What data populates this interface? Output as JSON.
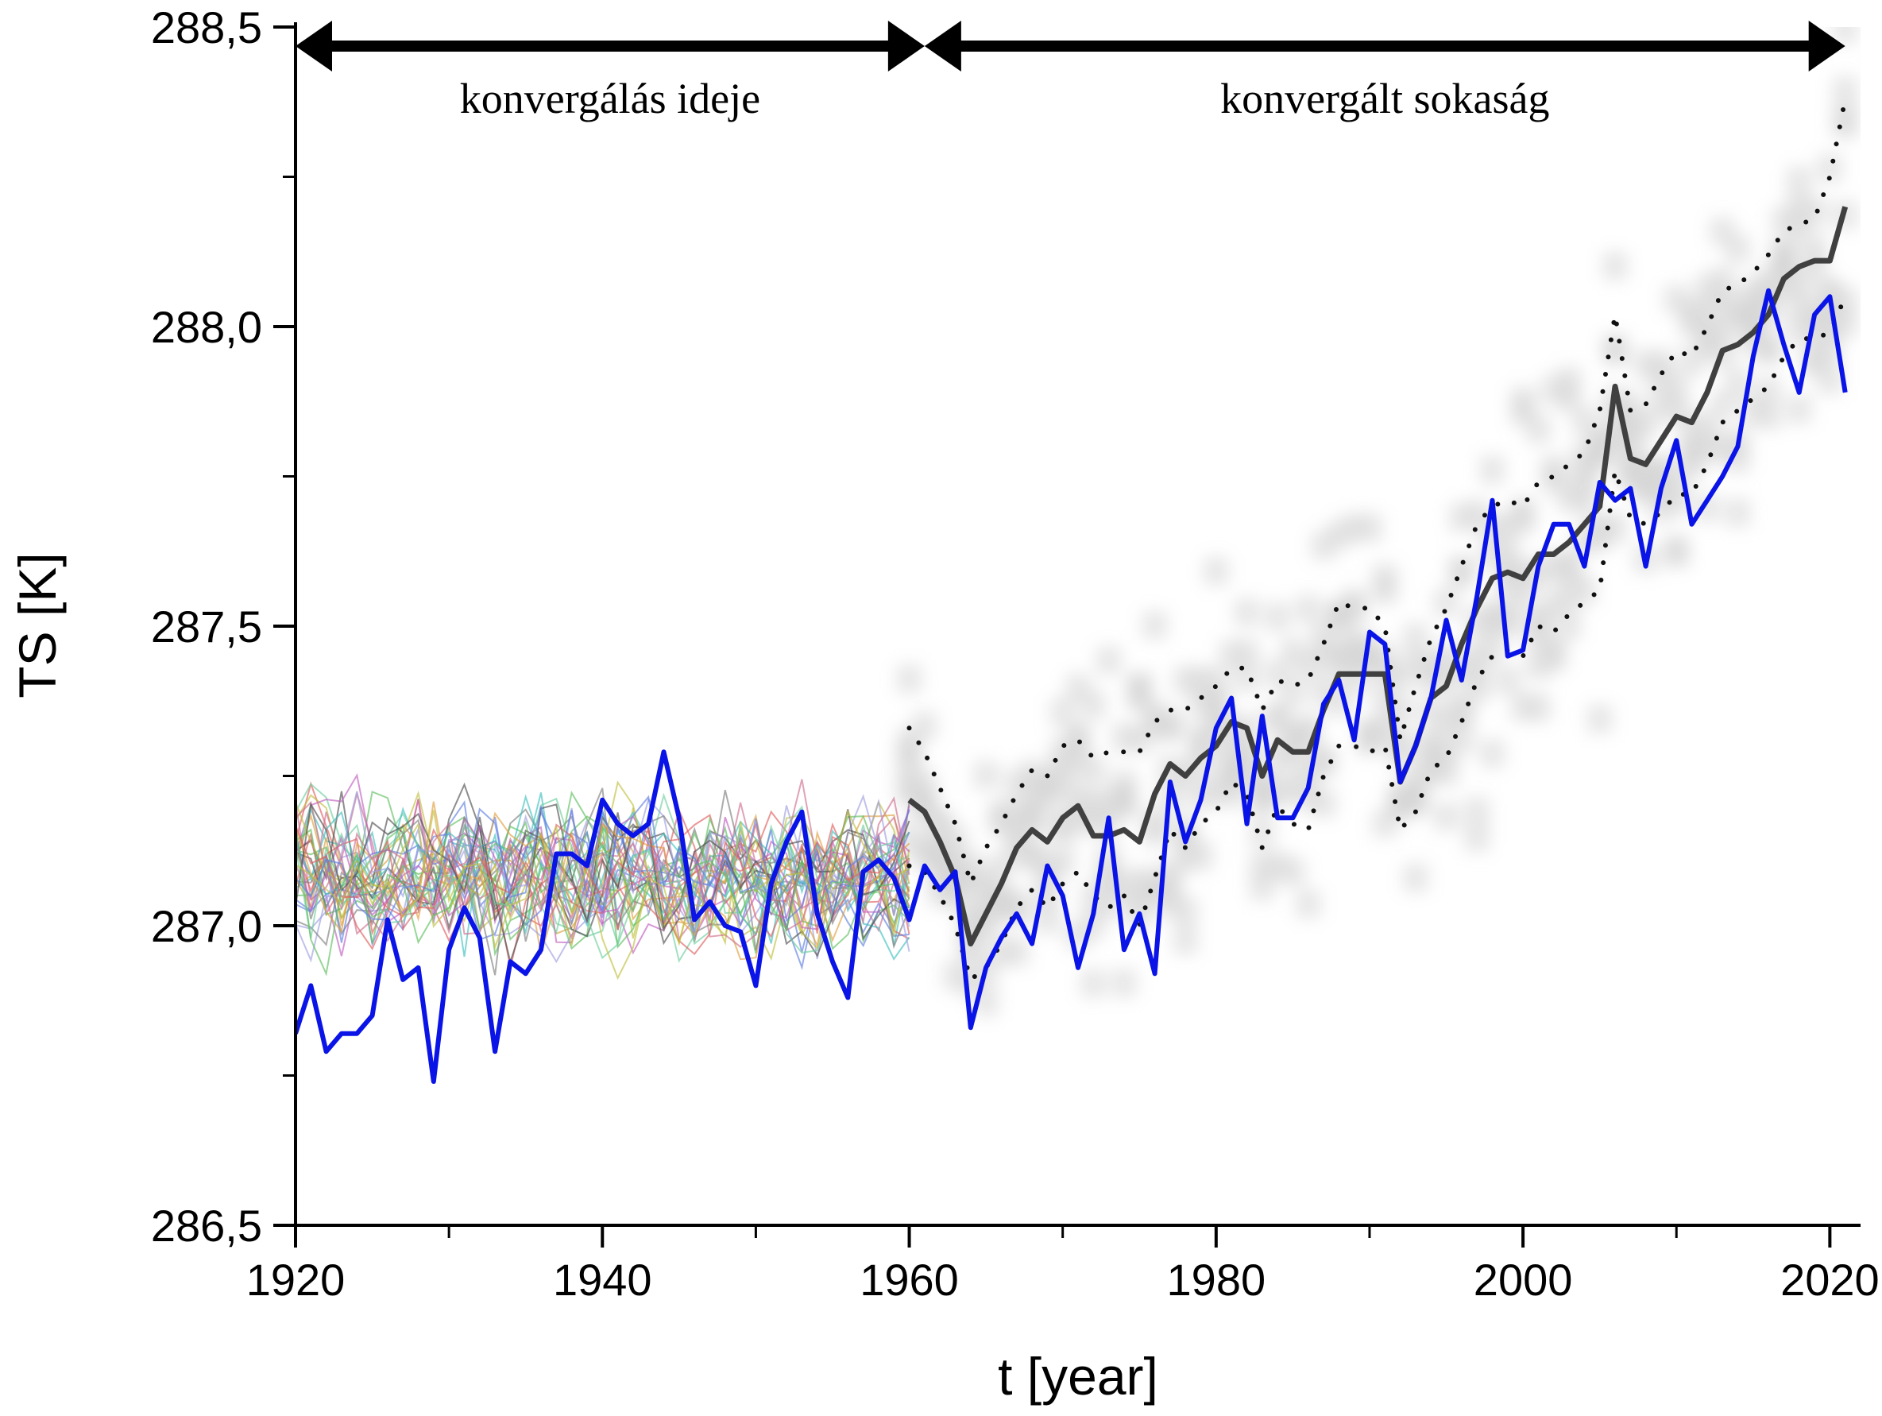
{
  "chart_data": {
    "type": "line",
    "xlabel": "t [year]",
    "ylabel": "TS [K]",
    "xlim": [
      1920,
      2022
    ],
    "ylim": [
      286.5,
      288.5
    ],
    "x_ticks": [
      1920,
      1940,
      1960,
      1980,
      2000,
      2020
    ],
    "y_ticks": [
      286.5,
      287.0,
      287.5,
      288.0,
      288.5
    ],
    "x_tick_labels": [
      "1920",
      "1940",
      "1960",
      "1980",
      "2000",
      "2020"
    ],
    "y_tick_labels": [
      "286,5",
      "287,0",
      "287,5",
      "288,0",
      "288,5"
    ],
    "annotations": [
      {
        "text": "konvergálás ideje",
        "x_start": 1920,
        "x_end": 1961
      },
      {
        "text": "konvergált sokaság",
        "x_start": 1961,
        "x_end": 2021
      }
    ],
    "colors": {
      "observed": "#0a14e6",
      "ensemble_mean": "#404040",
      "ensemble_bounds": "#111111",
      "ensemble_cloud": "#cfcfcf",
      "arrow": "#000000"
    },
    "series": [
      {
        "role": "observed",
        "x": [
          1920,
          1921,
          1922,
          1923,
          1924,
          1925,
          1926,
          1927,
          1928,
          1929,
          1930,
          1931,
          1932,
          1933,
          1934,
          1935,
          1936,
          1937,
          1938,
          1939,
          1940,
          1941,
          1942,
          1943,
          1944,
          1945,
          1946,
          1947,
          1948,
          1949,
          1950,
          1951,
          1952,
          1953,
          1954,
          1955,
          1956,
          1957,
          1958,
          1959,
          1960,
          1961,
          1962,
          1963,
          1964,
          1965,
          1966,
          1967,
          1968,
          1969,
          1970,
          1971,
          1972,
          1973,
          1974,
          1975,
          1976,
          1977,
          1978,
          1979,
          1980,
          1981,
          1982,
          1983,
          1984,
          1985,
          1986,
          1987,
          1988,
          1989,
          1990,
          1991,
          1992,
          1993,
          1994,
          1995,
          1996,
          1997,
          1998,
          1999,
          2000,
          2001,
          2002,
          2003,
          2004,
          2005,
          2006,
          2007,
          2008,
          2009,
          2010,
          2011,
          2012,
          2013,
          2014,
          2015,
          2016,
          2017,
          2018,
          2019,
          2020,
          2021
        ],
        "y": [
          286.82,
          286.9,
          286.79,
          286.82,
          286.82,
          286.85,
          287.01,
          286.91,
          286.93,
          286.74,
          286.96,
          287.03,
          286.98,
          286.79,
          286.94,
          286.92,
          286.96,
          287.12,
          287.12,
          287.1,
          287.21,
          287.17,
          287.15,
          287.17,
          287.29,
          287.18,
          287.01,
          287.04,
          287.0,
          286.99,
          286.9,
          287.07,
          287.14,
          287.19,
          287.02,
          286.94,
          286.88,
          287.09,
          287.11,
          287.08,
          287.01,
          287.1,
          287.06,
          287.09,
          286.83,
          286.93,
          286.98,
          287.02,
          286.97,
          287.1,
          287.05,
          286.93,
          287.02,
          287.18,
          286.96,
          287.02,
          286.92,
          287.24,
          287.14,
          287.21,
          287.33,
          287.38,
          287.17,
          287.35,
          287.18,
          287.18,
          287.23,
          287.37,
          287.41,
          287.31,
          287.49,
          287.47,
          287.24,
          287.3,
          287.38,
          287.51,
          287.41,
          287.55,
          287.71,
          287.45,
          287.46,
          287.6,
          287.67,
          287.67,
          287.6,
          287.74,
          287.71,
          287.73,
          287.6,
          287.73,
          287.81,
          287.67,
          287.71,
          287.75,
          287.8,
          287.95,
          288.06,
          287.97,
          287.89,
          288.02,
          288.05,
          287.89
        ]
      },
      {
        "role": "ensemble_mean",
        "x": [
          1960,
          1961,
          1962,
          1963,
          1964,
          1965,
          1966,
          1967,
          1968,
          1969,
          1970,
          1971,
          1972,
          1973,
          1974,
          1975,
          1976,
          1977,
          1978,
          1979,
          1980,
          1981,
          1982,
          1983,
          1984,
          1985,
          1986,
          1987,
          1988,
          1989,
          1990,
          1991,
          1992,
          1993,
          1994,
          1995,
          1996,
          1997,
          1998,
          1999,
          2000,
          2001,
          2002,
          2003,
          2004,
          2005,
          2006,
          2007,
          2008,
          2009,
          2010,
          2011,
          2012,
          2013,
          2014,
          2015,
          2016,
          2017,
          2018,
          2019,
          2020,
          2021
        ],
        "y": [
          287.21,
          287.19,
          287.14,
          287.08,
          286.97,
          287.02,
          287.07,
          287.13,
          287.16,
          287.14,
          287.18,
          287.2,
          287.15,
          287.15,
          287.16,
          287.14,
          287.22,
          287.27,
          287.25,
          287.28,
          287.3,
          287.34,
          287.33,
          287.25,
          287.31,
          287.29,
          287.29,
          287.36,
          287.42,
          287.42,
          287.42,
          287.42,
          287.24,
          287.3,
          287.38,
          287.4,
          287.47,
          287.53,
          287.58,
          287.59,
          287.58,
          287.62,
          287.62,
          287.64,
          287.67,
          287.7,
          287.9,
          287.78,
          287.77,
          287.81,
          287.85,
          287.84,
          287.89,
          287.96,
          287.97,
          287.99,
          288.02,
          288.08,
          288.1,
          288.11,
          288.11,
          288.2
        ]
      },
      {
        "role": "ensemble_upper",
        "x": [
          1960,
          1961,
          1962,
          1963,
          1964,
          1965,
          1966,
          1967,
          1968,
          1969,
          1970,
          1971,
          1972,
          1973,
          1974,
          1975,
          1976,
          1977,
          1978,
          1979,
          1980,
          1981,
          1982,
          1983,
          1984,
          1985,
          1986,
          1987,
          1988,
          1989,
          1990,
          1991,
          1992,
          1993,
          1994,
          1995,
          1996,
          1997,
          1998,
          1999,
          2000,
          2001,
          2002,
          2003,
          2004,
          2005,
          2006,
          2007,
          2008,
          2009,
          2010,
          2011,
          2012,
          2013,
          2014,
          2015,
          2016,
          2017,
          2018,
          2019,
          2020,
          2021
        ],
        "y": [
          287.33,
          287.29,
          287.23,
          287.17,
          287.07,
          287.13,
          287.17,
          287.22,
          287.26,
          287.25,
          287.3,
          287.31,
          287.28,
          287.29,
          287.29,
          287.29,
          287.34,
          287.36,
          287.36,
          287.38,
          287.4,
          287.43,
          287.43,
          287.36,
          287.41,
          287.4,
          287.41,
          287.47,
          287.54,
          287.53,
          287.53,
          287.5,
          287.31,
          287.4,
          287.48,
          287.53,
          287.6,
          287.67,
          287.7,
          287.71,
          287.7,
          287.74,
          287.75,
          287.77,
          287.79,
          287.86,
          288.02,
          287.86,
          287.87,
          287.92,
          287.96,
          287.95,
          288.0,
          288.06,
          288.07,
          288.09,
          288.12,
          288.16,
          288.17,
          288.18,
          288.25,
          288.38
        ]
      },
      {
        "role": "ensemble_lower",
        "x": [
          1960,
          1961,
          1962,
          1963,
          1964,
          1965,
          1966,
          1967,
          1968,
          1969,
          1970,
          1971,
          1972,
          1973,
          1974,
          1975,
          1976,
          1977,
          1978,
          1979,
          1980,
          1981,
          1982,
          1983,
          1984,
          1985,
          1986,
          1987,
          1988,
          1989,
          1990,
          1991,
          1992,
          1993,
          1994,
          1995,
          1996,
          1997,
          1998,
          1999,
          2000,
          2001,
          2002,
          2003,
          2004,
          2005,
          2006,
          2007,
          2008,
          2009,
          2010,
          2011,
          2012,
          2013,
          2014,
          2015,
          2016,
          2017,
          2018,
          2019,
          2020,
          2021
        ],
        "y": [
          287.1,
          287.09,
          287.05,
          287.0,
          286.91,
          286.93,
          286.97,
          287.03,
          287.06,
          287.03,
          287.07,
          287.09,
          287.05,
          287.03,
          287.05,
          287.0,
          287.08,
          287.16,
          287.13,
          287.17,
          287.19,
          287.24,
          287.22,
          287.13,
          287.2,
          287.17,
          287.16,
          287.25,
          287.3,
          287.3,
          287.29,
          287.3,
          287.16,
          287.19,
          287.26,
          287.28,
          287.34,
          287.41,
          287.45,
          287.46,
          287.45,
          287.5,
          287.49,
          287.52,
          287.54,
          287.56,
          287.76,
          287.68,
          287.67,
          287.69,
          287.72,
          287.72,
          287.77,
          287.84,
          287.86,
          287.88,
          287.9,
          287.95,
          287.98,
          287.98,
          287.99,
          288.05
        ]
      }
    ]
  }
}
